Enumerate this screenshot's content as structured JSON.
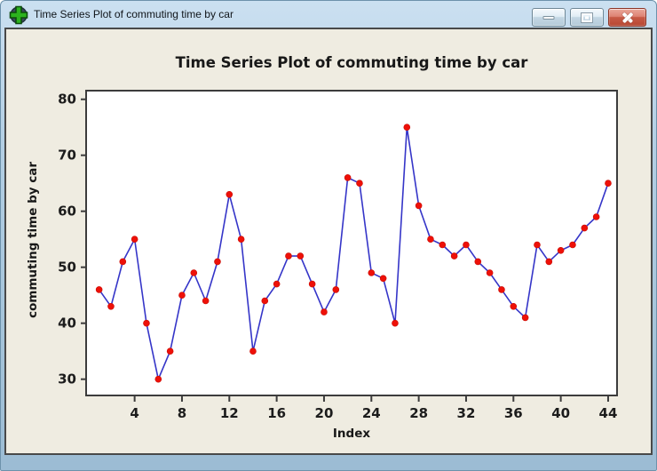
{
  "window": {
    "title": "Time Series Plot of commuting time by car",
    "icon": "green-plus-graph-icon",
    "controls": [
      "minimize-icon",
      "maximize-icon",
      "close-icon"
    ]
  },
  "colors": {
    "titlebar_blue": "#a5c4da",
    "graph_background": "#efece1",
    "plot_background": "#ffffff",
    "frame": "#3c3c3c",
    "line": "#3535c8",
    "marker": "#ee1008",
    "close_button_red": "#c75a45"
  },
  "chart_data": {
    "type": "line",
    "title": "Time Series Plot of commuting time by car",
    "xlabel": "Index",
    "ylabel": "commuting time by car",
    "x": [
      1,
      2,
      3,
      4,
      5,
      6,
      7,
      8,
      9,
      10,
      11,
      12,
      13,
      14,
      15,
      16,
      17,
      18,
      19,
      20,
      21,
      22,
      23,
      24,
      25,
      26,
      27,
      28,
      29,
      30,
      31,
      32,
      33,
      34,
      35,
      36,
      37,
      38,
      39,
      40,
      41,
      42,
      43,
      44
    ],
    "values": [
      46,
      43,
      51,
      55,
      40,
      30,
      35,
      45,
      49,
      44,
      51,
      63,
      55,
      35,
      44,
      47,
      52,
      52,
      47,
      42,
      46,
      66,
      65,
      49,
      48,
      40,
      75,
      61,
      55,
      54,
      52,
      54,
      51,
      49,
      46,
      43,
      41,
      54,
      51,
      53,
      54,
      57,
      59,
      65
    ],
    "x_ticks": [
      4,
      8,
      12,
      16,
      20,
      24,
      28,
      32,
      36,
      40,
      44
    ],
    "y_ticks": [
      30,
      40,
      50,
      60,
      70,
      80
    ],
    "xlim": [
      0,
      45
    ],
    "ylim": [
      30,
      80
    ],
    "grid": false,
    "legend": null,
    "marker_style": "filled-circle",
    "line_color": "#3535c8",
    "marker_color": "#ee1008"
  }
}
